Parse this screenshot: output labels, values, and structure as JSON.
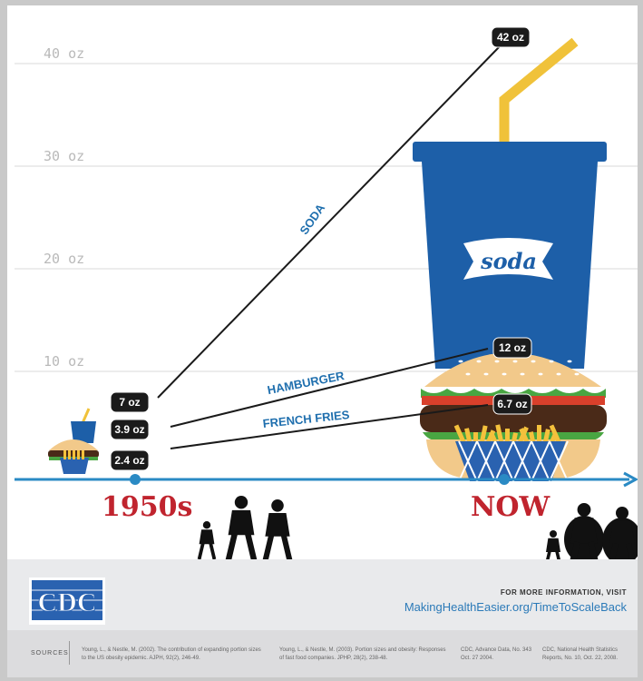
{
  "chart_data": {
    "type": "line",
    "y_ticks": [
      "10 oz",
      "20 oz",
      "30 oz",
      "40 oz"
    ],
    "ylim": [
      0,
      44
    ],
    "x": [
      "1950s",
      "NOW"
    ],
    "series": [
      {
        "name": "SODA",
        "values": [
          7,
          42
        ],
        "labels": [
          "7 oz",
          "42 oz"
        ]
      },
      {
        "name": "HAMBURGER",
        "values": [
          3.9,
          12
        ],
        "labels": [
          "3.9 oz",
          "12 oz"
        ]
      },
      {
        "name": "FRENCH FRIES",
        "values": [
          2.4,
          6.7
        ],
        "labels": [
          "2.4 oz",
          "6.7 oz"
        ]
      }
    ],
    "cup_text": "soda",
    "colors": {
      "axis": "#2a8ac4",
      "era_text": "#c0242e",
      "series_label": "#1f6fae",
      "cup": "#1d5fa8",
      "straw": "#f0c23a",
      "bun": "#f2c98a",
      "patty": "#4a2a18",
      "lettuce": "#49a642",
      "tomato": "#d8402b",
      "basket": "#2a62b0",
      "fries": "#f4c13c",
      "grid": "#d8d8d8",
      "tick_text": "#b9b9b9"
    }
  },
  "footer": {
    "logo_text": "CDC",
    "more_info_label": "FOR MORE INFORMATION, VISIT",
    "url": "MakingHealthEasier.org/TimeToScaleBack"
  },
  "sources": {
    "label": "SOURCES",
    "items": [
      "Young, L., & Nestle, M. (2002). The contribution of expanding portion sizes to the US obesity epidemic. AJPH, 92(2), 246-49.",
      "Young, L., & Nestle, M. (2003). Portion sizes and obesity: Responses of fast food companies. JPHP, 28(2), 238-48.",
      "CDC, Advance Data, No. 343 Oct. 27 2004.",
      "CDC, National Health Statistics Reports, No. 10, Oct. 22, 2008."
    ]
  }
}
